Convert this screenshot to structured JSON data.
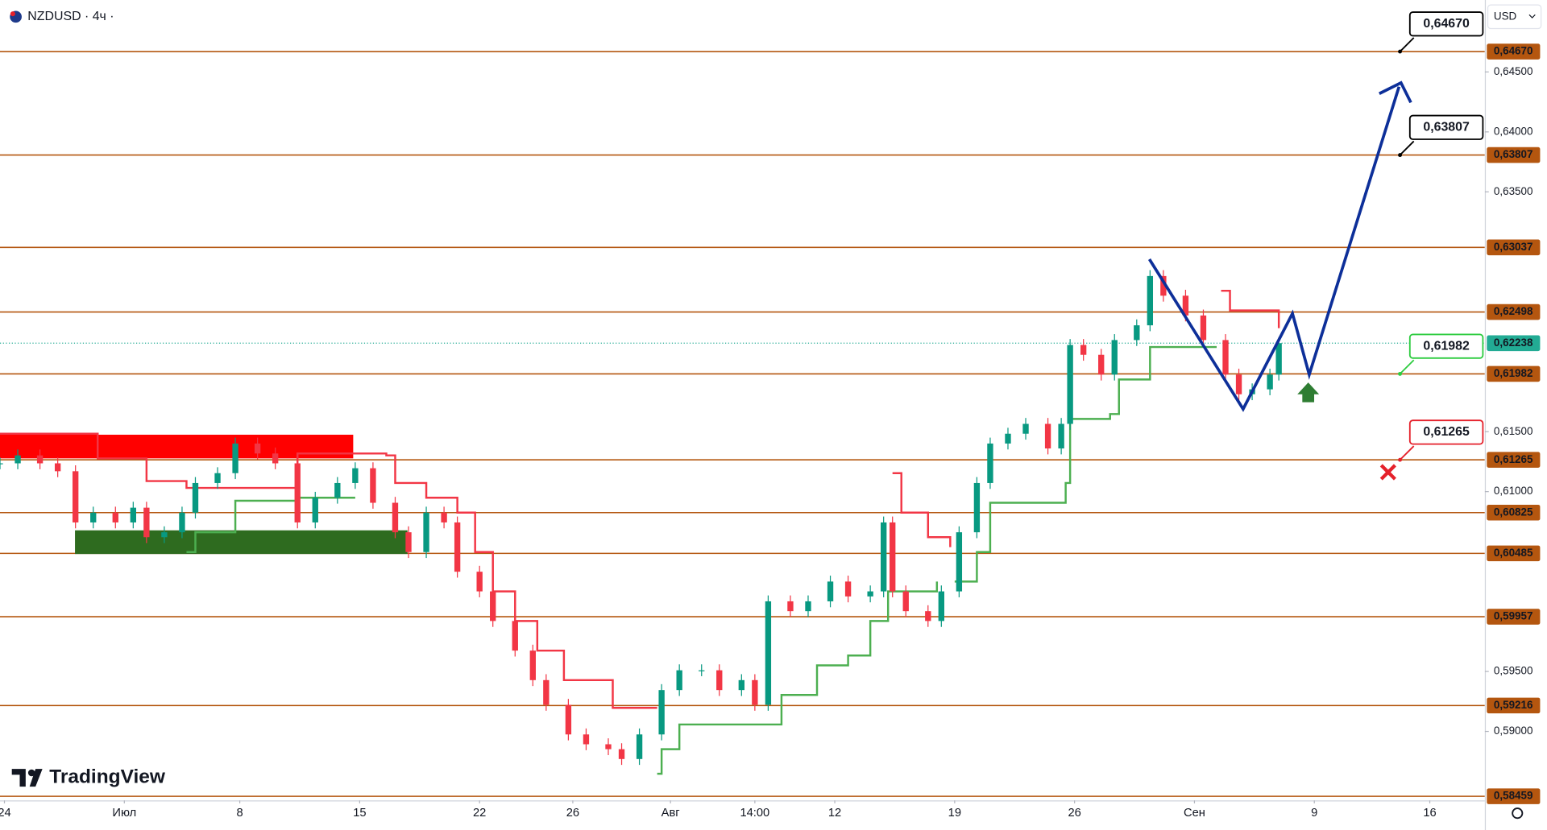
{
  "header": {
    "symbol": "NZDUSD · 4ч ·",
    "currency": "USD"
  },
  "logo": "TradingView",
  "chart_data": {
    "type": "candlestick",
    "x": [
      0,
      4,
      9,
      13,
      17,
      21,
      26,
      30,
      33,
      37,
      41,
      44,
      49,
      53,
      58,
      62,
      67,
      71,
      76,
      80,
      84,
      89,
      92,
      96,
      100,
      103,
      108,
      111,
      116,
      120,
      123,
      128,
      132,
      137,
      140,
      144,
      149,
      153,
      158,
      162,
      167,
      170,
      173,
      178,
      182,
      187,
      191,
      196,
      199,
      201,
      204,
      209,
      212,
      216,
      220,
      223,
      227,
      231,
      236,
      239,
      241,
      244,
      248,
      251,
      256,
      259,
      262,
      267,
      271,
      276,
      279,
      282,
      286,
      288
    ],
    "series": [
      {
        "color": "#089981",
        "down_color": "#f23645",
        "values": [
          0.61236,
          0.61302,
          0.61236,
          0.6117,
          0.60743,
          0.60825,
          0.60743,
          0.60866,
          0.6062,
          0.60661,
          0.60825,
          0.61072,
          0.61154,
          0.61401,
          0.61318,
          0.61236,
          0.60743,
          0.60949,
          0.61072,
          0.61195,
          0.60907,
          0.60661,
          0.60496,
          0.60825,
          0.60743,
          0.60332,
          0.60168,
          0.59921,
          0.59674,
          0.59428,
          0.59222,
          0.58975,
          0.58893,
          0.58852,
          0.5877,
          0.58975,
          0.59345,
          0.5951,
          0.5951,
          0.59345,
          0.59428,
          0.59222,
          0.60085,
          0.60003,
          0.60085,
          0.6025,
          0.60126,
          0.60168,
          0.60743,
          0.60168,
          0.60003,
          0.59921,
          0.60168,
          0.60661,
          0.61072,
          0.61401,
          0.61483,
          0.61565,
          0.6136,
          0.61565,
          0.62223,
          0.62141,
          0.61976,
          0.62264,
          0.62387,
          0.62798,
          0.62634,
          0.62469,
          0.62264,
          0.61976,
          0.61812,
          0.61853,
          0.61976,
          0.62238
        ]
      }
    ],
    "bands": [
      {
        "color": "#f23645",
        "x": [
          0,
          15,
          22,
          33,
          42,
          67,
          87,
          89,
          96,
          103,
          107,
          111,
          116,
          121,
          127,
          138,
          148
        ],
        "values": [
          0.61483,
          0.61483,
          0.61277,
          0.61088,
          0.61031,
          0.61318,
          0.61302,
          0.61072,
          0.60949,
          0.60825,
          0.60496,
          0.60168,
          0.59921,
          0.59674,
          0.59428,
          0.59197,
          0.59197
        ]
      },
      {
        "color": "#f23645",
        "x": [
          201,
          203,
          209,
          214
        ],
        "values": [
          0.61154,
          0.60825,
          0.6062,
          0.60537
        ]
      },
      {
        "color": "#f23645",
        "x": [
          275,
          277,
          288
        ],
        "values": [
          0.62675,
          0.62511,
          0.62363
        ]
      },
      {
        "color": "#4caf50",
        "x": [
          42,
          44,
          53,
          67,
          80
        ],
        "values": [
          0.60496,
          0.60661,
          0.60924,
          0.60949,
          0.60949
        ]
      },
      {
        "color": "#4caf50",
        "x": [
          148,
          149,
          153,
          173,
          176,
          184,
          191,
          196,
          200,
          211
        ],
        "values": [
          0.58647,
          0.58852,
          0.59058,
          0.59058,
          0.59304,
          0.59551,
          0.59633,
          0.59921,
          0.60168,
          0.6025
        ]
      },
      {
        "color": "#4caf50",
        "x": [
          215,
          220,
          223,
          240,
          241,
          250,
          252,
          259,
          274
        ],
        "values": [
          0.6025,
          0.60496,
          0.60907,
          0.61072,
          0.61606,
          0.61647,
          0.61935,
          0.62206,
          0.62206
        ]
      }
    ],
    "xlim": [
      0,
      334.4
    ],
    "ylim": [
      0.58441,
      0.651
    ],
    "xticks": [
      {
        "value": 1,
        "label": "24"
      },
      {
        "value": 28,
        "label": "Июл"
      },
      {
        "value": 54,
        "label": "8"
      },
      {
        "value": 81,
        "label": "15"
      },
      {
        "value": 108,
        "label": "22"
      },
      {
        "value": 129,
        "label": "26"
      },
      {
        "value": 151,
        "label": "Авг"
      },
      {
        "value": 170,
        "label": "14:00"
      },
      {
        "value": 188,
        "label": "12"
      },
      {
        "value": 215,
        "label": "19"
      },
      {
        "value": 242,
        "label": "26"
      },
      {
        "value": 269,
        "label": "Сен"
      },
      {
        "value": 296,
        "label": "9"
      },
      {
        "value": 322,
        "label": "16"
      }
    ],
    "yticks": [
      {
        "value": 0.645,
        "label": "0,64500"
      },
      {
        "value": 0.64,
        "label": "0,64000"
      },
      {
        "value": 0.635,
        "label": "0,63500"
      },
      {
        "value": 0.615,
        "label": "0,61500"
      },
      {
        "value": 0.61,
        "label": "0,61000"
      },
      {
        "value": 0.595,
        "label": "0,59500"
      },
      {
        "value": 0.59,
        "label": "0,59000"
      }
    ],
    "levels": [
      {
        "value": 0.6467,
        "label": "0,64670"
      },
      {
        "value": 0.63807,
        "label": "0,63807"
      },
      {
        "value": 0.63037,
        "label": "0,63037"
      },
      {
        "value": 0.62498,
        "label": "0,62498"
      },
      {
        "value": 0.61982,
        "label": "0,61982"
      },
      {
        "value": 0.61265,
        "label": "0,61265"
      },
      {
        "value": 0.60825,
        "label": "0,60825"
      },
      {
        "value": 0.60485,
        "label": "0,60485"
      },
      {
        "value": 0.59957,
        "label": "0,59957"
      },
      {
        "value": 0.59216,
        "label": "0,59216"
      },
      {
        "value": 0.58459,
        "label": "0,58459"
      }
    ],
    "level_color": "#b4560f",
    "last_price": {
      "value": 0.62238,
      "label": "0,62238",
      "color": "#22ab94"
    },
    "annotations": [
      {
        "value": 0.6467,
        "label": "0,64670",
        "color": "#000000"
      },
      {
        "value": 0.63807,
        "label": "0,63807",
        "color": "#000000"
      },
      {
        "value": 0.61982,
        "label": "0,61982",
        "color": "#2ecc40"
      },
      {
        "value": 0.61265,
        "label": "0,61265",
        "color": "#e5212b"
      }
    ]
  }
}
